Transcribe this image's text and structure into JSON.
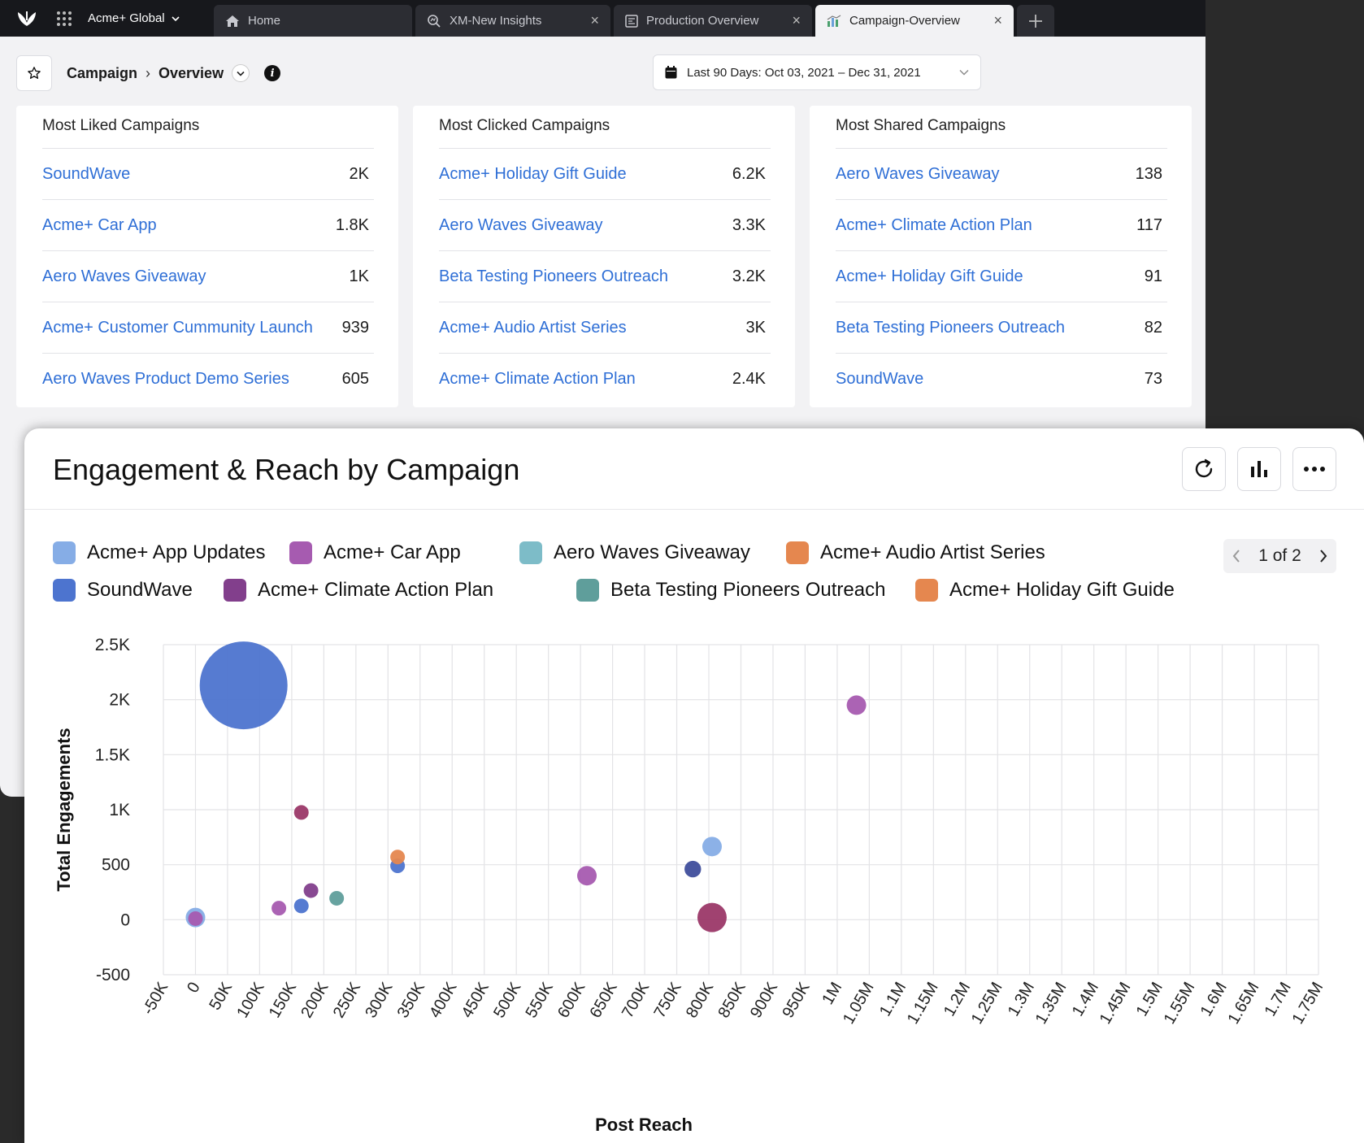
{
  "topbar": {
    "workspace": "Acme+ Global",
    "tabs": [
      {
        "label": "Home",
        "closable": false,
        "active": false,
        "icon": "home-icon"
      },
      {
        "label": "XM-New Insights",
        "closable": true,
        "active": false,
        "icon": "insights-icon"
      },
      {
        "label": "Production Overview",
        "closable": true,
        "active": false,
        "icon": "dashboard-icon"
      },
      {
        "label": "Campaign-Overview",
        "closable": true,
        "active": true,
        "icon": "chart-icon"
      }
    ]
  },
  "breadcrumb": {
    "parent": "Campaign",
    "current": "Overview"
  },
  "date_range": "Last 90 Days: Oct 03, 2021 – Dec 31, 2021",
  "cards": [
    {
      "title": "Most Liked Campaigns",
      "rows": [
        {
          "name": "SoundWave",
          "value": "2K"
        },
        {
          "name": "Acme+ Car App",
          "value": "1.8K"
        },
        {
          "name": "Aero Waves Giveaway",
          "value": "1K"
        },
        {
          "name": "Acme+ Customer Cummunity Launch",
          "value": "939"
        },
        {
          "name": "Aero Waves Product Demo Series",
          "value": "605"
        }
      ]
    },
    {
      "title": "Most Clicked Campaigns",
      "rows": [
        {
          "name": "Acme+ Holiday Gift Guide",
          "value": "6.2K"
        },
        {
          "name": "Aero Waves Giveaway",
          "value": "3.3K"
        },
        {
          "name": "Beta Testing Pioneers Outreach",
          "value": "3.2K"
        },
        {
          "name": "Acme+ Audio Artist Series",
          "value": "3K"
        },
        {
          "name": "Acme+ Climate Action Plan",
          "value": "2.4K"
        }
      ]
    },
    {
      "title": "Most Shared Campaigns",
      "rows": [
        {
          "name": "Aero Waves Giveaway",
          "value": "138"
        },
        {
          "name": "Acme+ Climate Action Plan",
          "value": "117"
        },
        {
          "name": "Acme+ Holiday Gift Guide",
          "value": "91"
        },
        {
          "name": "Beta Testing Pioneers Outreach",
          "value": "82"
        },
        {
          "name": "SoundWave",
          "value": "73"
        }
      ]
    }
  ],
  "widget": {
    "title": "Engagement & Reach by Campaign",
    "pager": "1 of 2"
  },
  "colors": {
    "link": "#2f6fd6",
    "topbar": "#17181c"
  },
  "chart_data": {
    "type": "scatter",
    "title": "",
    "xlabel": "Post Reach",
    "ylabel": "Total Engagements",
    "xlim": [
      -50000,
      1750000
    ],
    "ylim": [
      -500,
      2500
    ],
    "x_ticks": [
      "-50K",
      "0",
      "50K",
      "100K",
      "150K",
      "200K",
      "250K",
      "300K",
      "350K",
      "400K",
      "450K",
      "500K",
      "550K",
      "600K",
      "650K",
      "700K",
      "750K",
      "800K",
      "850K",
      "900K",
      "950K",
      "1M",
      "1.05M",
      "1.1M",
      "1.15M",
      "1.2M",
      "1.25M",
      "1.3M",
      "1.35M",
      "1.4M",
      "1.45M",
      "1.5M",
      "1.55M",
      "1.6M",
      "1.65M",
      "1.7M",
      "1.75M"
    ],
    "y_ticks": [
      "2.5K",
      "2K",
      "1.5K",
      "1K",
      "500",
      "0",
      "-500"
    ],
    "grid": true,
    "legend_position": "top",
    "series": [
      {
        "name": "Acme+ App Updates",
        "color": "#86ade6",
        "points": [
          {
            "x": 0,
            "y": 20,
            "size": 2
          },
          {
            "x": 805000,
            "y": 665,
            "size": 2
          }
        ]
      },
      {
        "name": "Acme+ Car App",
        "color": "#a65bb0",
        "points": [
          {
            "x": 1030000,
            "y": 1950,
            "size": 2
          },
          {
            "x": 610000,
            "y": 400,
            "size": 2
          },
          {
            "x": 130000,
            "y": 105,
            "size": 1.5
          },
          {
            "x": 0,
            "y": 10,
            "size": 1.5
          }
        ]
      },
      {
        "name": "Aero Waves Giveaway",
        "color": "#7dbcc8",
        "points": []
      },
      {
        "name": "Acme+ Audio Artist Series",
        "color": "#e5874f",
        "points": []
      },
      {
        "name": "SoundWave",
        "color": "#4d74cf",
        "points": [
          {
            "x": 75000,
            "y": 2130,
            "size": 9
          },
          {
            "x": 165000,
            "y": 125,
            "size": 1.5
          },
          {
            "x": 315000,
            "y": 490,
            "size": 1.5
          }
        ]
      },
      {
        "name": "Acme+ Climate Action Plan",
        "color": "#823f8c",
        "points": [
          {
            "x": 180000,
            "y": 265,
            "size": 1.5
          }
        ]
      },
      {
        "name": "Beta Testing Pioneers Outreach",
        "color": "#5f9e9b",
        "points": [
          {
            "x": 220000,
            "y": 195,
            "size": 1.5
          }
        ]
      },
      {
        "name": "Acme+ Holiday Gift Guide",
        "color": "#e5874f",
        "points": [
          {
            "x": 315000,
            "y": 570,
            "size": 1.5
          }
        ]
      },
      {
        "name": "",
        "color": "#9b3868",
        "points": [
          {
            "x": 165000,
            "y": 975,
            "size": 1.5
          },
          {
            "x": 805000,
            "y": 20,
            "size": 3
          }
        ]
      },
      {
        "name": "",
        "color": "#3f4e9c",
        "points": [
          {
            "x": 775000,
            "y": 460,
            "size": 1.7
          }
        ]
      }
    ]
  }
}
